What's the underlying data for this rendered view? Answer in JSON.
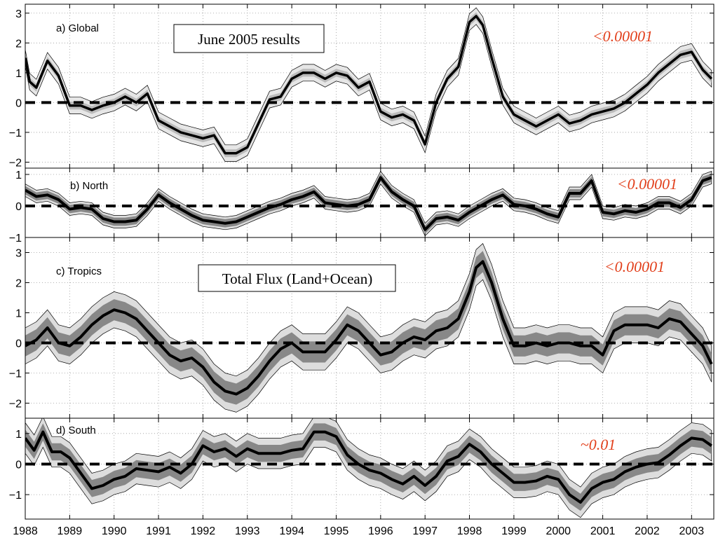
{
  "chart_data": {
    "type": "line",
    "x_range": [
      1988,
      2003.5
    ],
    "x_ticks": [
      1988,
      1989,
      1990,
      1991,
      1992,
      1993,
      1994,
      1995,
      1996,
      1997,
      1998,
      1999,
      2000,
      2001,
      2002,
      2003
    ],
    "colors": {
      "annotation": "#e2401c",
      "outer_band": "#dddddd",
      "inner_band": "#888888",
      "mean_line": "#000000"
    },
    "panels": [
      {
        "id": "global",
        "label": "a) Global",
        "box_label": "June 2005 results",
        "annotation": "<0.00001",
        "ylim": [
          -2.2,
          3.3
        ],
        "y_ticks": [
          -2,
          -1,
          0,
          1,
          2,
          3
        ],
        "band_style": "light",
        "x": [
          1988,
          1988.1,
          1988.25,
          1988.5,
          1988.75,
          1989,
          1989.25,
          1989.5,
          1989.75,
          1990,
          1990.25,
          1990.5,
          1990.75,
          1991,
          1991.25,
          1991.5,
          1991.75,
          1992,
          1992.25,
          1992.5,
          1992.75,
          1993,
          1993.25,
          1993.5,
          1993.75,
          1994,
          1994.25,
          1994.5,
          1994.75,
          1995,
          1995.25,
          1995.5,
          1995.75,
          1996,
          1996.25,
          1996.5,
          1996.75,
          1997,
          1997.25,
          1997.5,
          1997.75,
          1998,
          1998.15,
          1998.3,
          1998.5,
          1998.75,
          1999,
          1999.25,
          1999.5,
          1999.75,
          2000,
          2000.25,
          2000.5,
          2000.75,
          2001,
          2001.25,
          2001.5,
          2001.75,
          2002,
          2002.25,
          2002.5,
          2002.75,
          2003,
          2003.25,
          2003.45
        ],
        "y": [
          1.5,
          0.7,
          0.5,
          1.4,
          0.9,
          -0.1,
          -0.1,
          -0.25,
          -0.1,
          0.0,
          0.2,
          0.0,
          0.3,
          -0.6,
          -0.8,
          -1.0,
          -1.1,
          -1.2,
          -1.1,
          -1.7,
          -1.7,
          -1.5,
          -0.7,
          0.1,
          0.2,
          0.8,
          1.0,
          1.0,
          0.8,
          1.0,
          0.9,
          0.5,
          0.7,
          -0.3,
          -0.5,
          -0.4,
          -0.6,
          -1.4,
          0.0,
          0.8,
          1.2,
          2.7,
          2.9,
          2.6,
          1.5,
          0.2,
          -0.4,
          -0.6,
          -0.8,
          -0.6,
          -0.4,
          -0.7,
          -0.6,
          -0.4,
          -0.3,
          -0.2,
          0.0,
          0.3,
          0.6,
          1.0,
          1.3,
          1.6,
          1.7,
          1.1,
          0.8
        ],
        "outer_halfwidth": 0.28,
        "inner_halfwidth": 0.13
      },
      {
        "id": "north",
        "label": "b) North",
        "box_label": "",
        "annotation": "<0.00001",
        "ylim": [
          -1.0,
          1.2
        ],
        "y_ticks": [
          -1,
          0,
          1
        ],
        "band_style": "dark",
        "x": [
          1988,
          1988.25,
          1988.5,
          1988.75,
          1989,
          1989.25,
          1989.5,
          1989.75,
          1990,
          1990.25,
          1990.5,
          1990.75,
          1991,
          1991.25,
          1991.5,
          1991.75,
          1992,
          1992.25,
          1992.5,
          1992.75,
          1993,
          1993.25,
          1993.5,
          1993.75,
          1994,
          1994.25,
          1994.5,
          1994.75,
          1995,
          1995.25,
          1995.5,
          1995.75,
          1996,
          1996.25,
          1996.5,
          1996.75,
          1997,
          1997.25,
          1997.5,
          1997.75,
          1998,
          1998.25,
          1998.5,
          1998.75,
          1999,
          1999.25,
          1999.5,
          1999.75,
          2000,
          2000.25,
          2000.5,
          2000.75,
          2001,
          2001.25,
          2001.5,
          2001.75,
          2002,
          2002.25,
          2002.5,
          2002.75,
          2003,
          2003.25,
          2003.45
        ],
        "y": [
          0.5,
          0.3,
          0.35,
          0.2,
          -0.1,
          -0.05,
          -0.1,
          -0.4,
          -0.5,
          -0.5,
          -0.45,
          -0.1,
          0.35,
          0.1,
          -0.1,
          -0.3,
          -0.45,
          -0.5,
          -0.55,
          -0.5,
          -0.35,
          -0.2,
          -0.05,
          0.05,
          0.2,
          0.3,
          0.45,
          0.1,
          0.05,
          0.0,
          0.05,
          0.2,
          0.9,
          0.45,
          0.2,
          0.0,
          -0.75,
          -0.4,
          -0.35,
          -0.45,
          -0.2,
          0.0,
          0.2,
          0.35,
          0.05,
          0.0,
          -0.1,
          -0.25,
          -0.35,
          0.4,
          0.4,
          0.8,
          -0.2,
          -0.25,
          -0.15,
          -0.2,
          -0.1,
          0.1,
          0.1,
          -0.05,
          0.2,
          0.8,
          0.9
        ],
        "outer_halfwidth": 0.2,
        "inner_halfwidth": 0.13
      },
      {
        "id": "tropics",
        "label": "c) Tropics",
        "box_label": "Total Flux (Land+Ocean)",
        "annotation": "<0.00001",
        "ylim": [
          -2.5,
          3.5
        ],
        "y_ticks": [
          -2,
          -1,
          0,
          1,
          2,
          3
        ],
        "band_style": "dark",
        "x": [
          1988,
          1988.25,
          1988.5,
          1988.75,
          1989,
          1989.25,
          1989.5,
          1989.75,
          1990,
          1990.25,
          1990.5,
          1990.75,
          1991,
          1991.25,
          1991.5,
          1991.75,
          1992,
          1992.25,
          1992.5,
          1992.75,
          1993,
          1993.25,
          1993.5,
          1993.75,
          1994,
          1994.25,
          1994.5,
          1994.75,
          1995,
          1995.25,
          1995.5,
          1995.75,
          1996,
          1996.25,
          1996.5,
          1996.75,
          1997,
          1997.25,
          1997.5,
          1997.75,
          1998,
          1998.15,
          1998.3,
          1998.5,
          1998.75,
          1999,
          1999.25,
          1999.5,
          1999.75,
          2000,
          2000.25,
          2000.5,
          2000.75,
          2001,
          2001.25,
          2001.5,
          2001.75,
          2002,
          2002.25,
          2002.5,
          2002.75,
          2003,
          2003.25,
          2003.45
        ],
        "y": [
          -0.1,
          0.1,
          0.5,
          0.0,
          -0.1,
          0.2,
          0.6,
          0.9,
          1.1,
          1.0,
          0.8,
          0.4,
          0.0,
          -0.4,
          -0.6,
          -0.5,
          -0.8,
          -1.3,
          -1.6,
          -1.7,
          -1.5,
          -1.1,
          -0.6,
          -0.2,
          0.0,
          -0.3,
          -0.3,
          -0.3,
          0.1,
          0.6,
          0.4,
          0.0,
          -0.4,
          -0.3,
          0.0,
          0.2,
          0.1,
          0.4,
          0.5,
          0.8,
          1.7,
          2.5,
          2.7,
          2.0,
          0.8,
          -0.1,
          -0.1,
          0.0,
          -0.1,
          0.0,
          0.0,
          -0.1,
          -0.1,
          -0.4,
          0.4,
          0.6,
          0.6,
          0.6,
          0.5,
          0.8,
          0.7,
          0.3,
          -0.1,
          -0.7
        ],
        "outer_halfwidth": 0.6,
        "inner_halfwidth": 0.35
      },
      {
        "id": "south",
        "label": "d) South",
        "box_label": "",
        "annotation": "~0.01",
        "ylim": [
          -1.8,
          1.5
        ],
        "y_ticks": [
          -1,
          0,
          1
        ],
        "band_style": "dark",
        "x": [
          1988,
          1988.2,
          1988.4,
          1988.6,
          1988.8,
          1989,
          1989.25,
          1989.5,
          1989.75,
          1990,
          1990.25,
          1990.5,
          1990.75,
          1991,
          1991.25,
          1991.5,
          1991.75,
          1992,
          1992.25,
          1992.5,
          1992.75,
          1993,
          1993.25,
          1993.5,
          1993.75,
          1994,
          1994.25,
          1994.5,
          1994.75,
          1995,
          1995.25,
          1995.5,
          1995.75,
          1996,
          1996.25,
          1996.5,
          1996.75,
          1997,
          1997.25,
          1997.5,
          1997.75,
          1998,
          1998.25,
          1998.5,
          1998.75,
          1999,
          1999.25,
          1999.5,
          1999.75,
          2000,
          2000.25,
          2000.5,
          2000.75,
          2001,
          2001.25,
          2001.5,
          2001.75,
          2002,
          2002.25,
          2002.5,
          2002.75,
          2003,
          2003.25,
          2003.45
        ],
        "y": [
          0.85,
          0.45,
          1.05,
          0.4,
          0.4,
          0.2,
          -0.3,
          -0.8,
          -0.7,
          -0.5,
          -0.4,
          -0.15,
          -0.2,
          -0.25,
          -0.1,
          -0.3,
          0.0,
          0.6,
          0.4,
          0.5,
          0.25,
          0.5,
          0.35,
          0.35,
          0.35,
          0.45,
          0.5,
          1.05,
          1.05,
          0.9,
          0.3,
          0.0,
          -0.2,
          -0.3,
          -0.5,
          -0.65,
          -0.4,
          -0.7,
          -0.4,
          0.1,
          0.25,
          0.65,
          0.4,
          0.0,
          -0.3,
          -0.6,
          -0.6,
          -0.55,
          -0.4,
          -0.5,
          -1.0,
          -1.25,
          -0.8,
          -0.6,
          -0.5,
          -0.25,
          -0.1,
          0.0,
          0.05,
          0.3,
          0.6,
          0.85,
          0.8,
          0.6
        ],
        "outer_halfwidth": 0.5,
        "inner_halfwidth": 0.28
      }
    ]
  }
}
